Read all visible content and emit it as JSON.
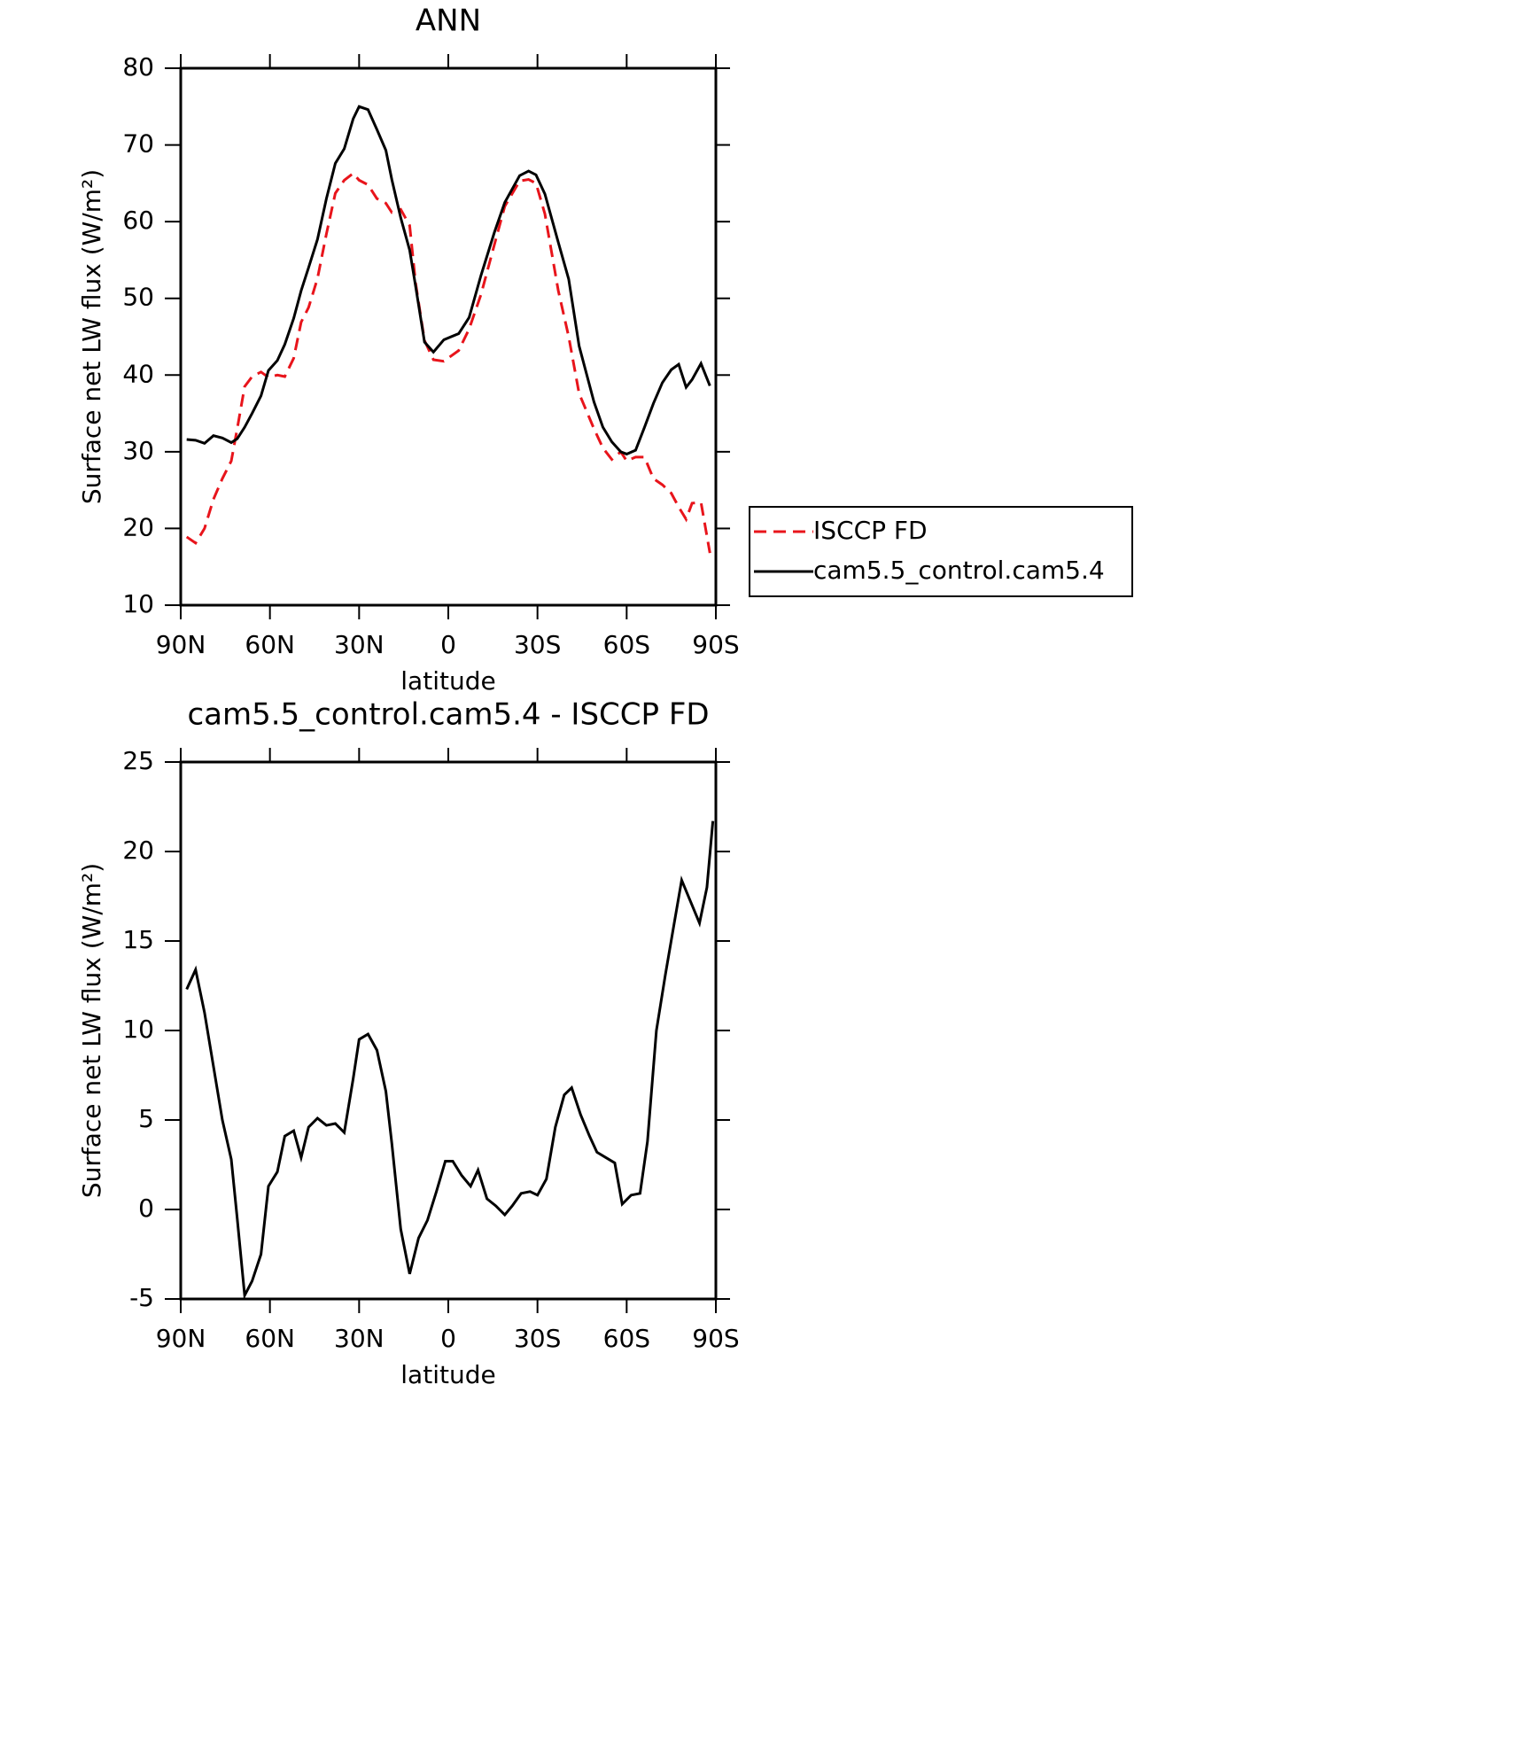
{
  "chart_data": [
    {
      "type": "line",
      "title": "ANN",
      "xlabel": "latitude",
      "ylabel": "Surface net LW flux (W/m²)",
      "x": [
        88,
        85,
        82,
        79,
        76,
        73,
        71,
        68.5,
        66,
        63,
        60.5,
        57.5,
        55,
        52,
        49.5,
        47,
        44,
        41,
        38,
        35,
        32,
        30,
        27,
        24,
        21,
        19,
        16,
        13,
        11,
        8,
        5,
        1.5,
        -3.5,
        -7,
        -11,
        -15.5,
        -19,
        -24,
        -27,
        -29.5,
        -32.5,
        -37,
        -40.5,
        -44,
        -49,
        -52,
        -55,
        -58,
        -60,
        -63,
        -66,
        -69,
        -72,
        -75,
        -77.5,
        -80,
        -82,
        -85,
        -88
      ],
      "series": [
        {
          "name": "ISCCP FD",
          "color": "#e8141b",
          "dash": true,
          "values": [
            18.9,
            18.1,
            20,
            23.8,
            26.5,
            28.8,
            33,
            38.5,
            39.8,
            40.4,
            39.7,
            40,
            39.8,
            42.2,
            46.9,
            48.8,
            52.6,
            58.4,
            63.7,
            65.4,
            66.3,
            65.4,
            64.8,
            63,
            62.4,
            61.2,
            61.6,
            59.5,
            52,
            44.5,
            42,
            41.8,
            43.2,
            46,
            50.5,
            57,
            62,
            65.3,
            65.5,
            65,
            61,
            51,
            45,
            37.6,
            33,
            30.5,
            29,
            30,
            28.8,
            29.3,
            29.3,
            26.5,
            25.7,
            24.6,
            22.8,
            21.2,
            23.3,
            23.4,
            16.8
          ]
        },
        {
          "name": "cam5.5_control.cam5.4",
          "color": "#000000",
          "dash": false,
          "values": [
            31.6,
            31.5,
            31.1,
            32.1,
            31.8,
            31.2,
            31.7,
            33.2,
            35,
            37.3,
            40.6,
            41.9,
            44,
            47.4,
            51,
            54,
            57.7,
            63,
            67.6,
            69.5,
            73.4,
            75,
            74.6,
            72,
            69.3,
            65.5,
            60.5,
            56.3,
            51.6,
            44.3,
            43,
            44.6,
            45.4,
            47.5,
            53,
            58.6,
            62.5,
            66,
            66.6,
            66.1,
            63.6,
            57.3,
            52.5,
            43.8,
            36.5,
            33.2,
            31.3,
            30,
            29.7,
            30.2,
            33.2,
            36.3,
            39,
            40.7,
            41.4,
            38.4,
            39.4,
            41.5,
            38.6
          ]
        }
      ],
      "xlim": [
        90,
        -90
      ],
      "xticks": [
        {
          "value": 90,
          "label": "90N"
        },
        {
          "value": 60,
          "label": "60N"
        },
        {
          "value": 30,
          "label": "30N"
        },
        0,
        {
          "value": -30,
          "label": "30S"
        },
        {
          "value": -60,
          "label": "60S"
        },
        {
          "value": -90,
          "label": "90S"
        }
      ],
      "ylim": [
        10,
        80
      ],
      "yticks": [
        10,
        20,
        30,
        40,
        50,
        60,
        70,
        80
      ],
      "legend": "right"
    },
    {
      "type": "line",
      "title": "cam5.5_control.cam5.4 - ISCCP FD",
      "xlabel": "latitude",
      "ylabel": "Surface net LW flux (W/m²)",
      "x": [
        88,
        85,
        82,
        79,
        76,
        73,
        71,
        68.5,
        66,
        63,
        60.5,
        57.5,
        55,
        52,
        49.5,
        47,
        44,
        41,
        38,
        35,
        32,
        30,
        27,
        24,
        21,
        19,
        16,
        13,
        10,
        7,
        4,
        1,
        -1.5,
        -4.5,
        -7.5,
        -10,
        -13,
        -16,
        -19,
        -21.5,
        -24.5,
        -27.5,
        -30,
        -33,
        -36,
        -39,
        -41.5,
        -44.5,
        -47.5,
        -50,
        -53,
        -56,
        -58.5,
        -61.5,
        -64.5,
        -67,
        -70,
        -73,
        -76,
        -78.5,
        -81.5,
        -84.5,
        -87,
        -89
      ],
      "series": [
        {
          "color": "#000000",
          "dash": false,
          "values": [
            12.3,
            13.4,
            11,
            8,
            5,
            2.8,
            -0.5,
            -4.8,
            -4,
            -2.5,
            1.3,
            2.1,
            4.1,
            4.4,
            2.9,
            4.6,
            5.1,
            4.7,
            4.8,
            4.3,
            7.3,
            9.5,
            9.8,
            8.9,
            6.6,
            3.7,
            -1.1,
            -3.6,
            -1.6,
            -0.6,
            1,
            2.7,
            2.7,
            1.9,
            1.3,
            2.2,
            0.6,
            0.2,
            -0.3,
            0.2,
            0.9,
            1,
            0.8,
            1.7,
            4.6,
            6.4,
            6.8,
            5.3,
            4.1,
            3.2,
            2.9,
            2.6,
            0.3,
            0.8,
            0.9,
            3.8,
            10,
            13.1,
            16,
            18.4,
            17.2,
            16,
            18,
            21.7
          ]
        }
      ],
      "xlim": [
        90,
        -90
      ],
      "xticks": [
        {
          "value": 90,
          "label": "90N"
        },
        {
          "value": 60,
          "label": "60N"
        },
        {
          "value": 30,
          "label": "30N"
        },
        0,
        {
          "value": -30,
          "label": "30S"
        },
        {
          "value": -60,
          "label": "60S"
        },
        {
          "value": -90,
          "label": "90S"
        }
      ],
      "ylim": [
        -5,
        25
      ],
      "yticks": [
        -5,
        0,
        5,
        10,
        15,
        20,
        25
      ]
    }
  ]
}
